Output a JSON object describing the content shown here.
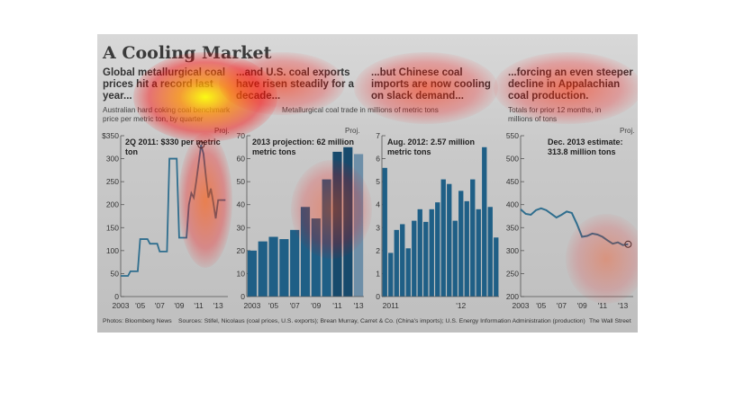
{
  "title": "A Cooling Market",
  "panels": [
    {
      "headline": "Global metallurgical coal prices hit a record last year...",
      "subtitle": "Australian hard coking coal benchmark price per metric ton, by quarter",
      "proj": "Proj.",
      "annotation": "2Q 2011: $330 per metric ton"
    },
    {
      "headline": "...and U.S. coal exports have risen steadily for a decade...",
      "subtitle": "",
      "proj": "Proj.",
      "annotation": "2013 projection: 62 million metric tons"
    },
    {
      "headline": "...but Chinese coal imports are now cooling on slack demand...",
      "subtitle": "",
      "proj": "",
      "annotation": "Aug. 2012: 2.57 million metric tons"
    },
    {
      "headline": "...forcing an even steeper decline in Appalachian coal production.",
      "subtitle": "Totals for prior 12 months, in millions of tons",
      "proj": "Proj.",
      "annotation": "Dec. 2013 estimate: 313.8 million tons"
    }
  ],
  "shared_subtitle": "Metallurgical coal trade in millions of metric tons",
  "footer": {
    "photos": "Photos: Bloomberg News",
    "sources": "Sources: Stifel, Nicolaus (coal prices, U.S. exports); Brean Murray, Carret & Co. (China's imports); U.S. Energy Information Administration (production)",
    "brand": "The Wall Street"
  },
  "colors": {
    "line": "#2f6e8e",
    "bar": "#1f5f86",
    "bar_dark": "#174a6c",
    "bar_proj": "#6e8fa8"
  },
  "chart_data": [
    {
      "type": "line",
      "ylim": [
        0,
        350
      ],
      "yticks": [
        0,
        50,
        100,
        150,
        200,
        250,
        300,
        350
      ],
      "ytick_labels": [
        "0",
        "50",
        "100",
        "150",
        "200",
        "250",
        "300",
        "$350"
      ],
      "xlim": [
        2003,
        2014
      ],
      "xtick_labels": [
        "2003",
        "'05",
        "'07",
        "'09",
        "'11",
        "'13"
      ],
      "xtick_values": [
        2003,
        2005,
        2007,
        2009,
        2011,
        2013
      ],
      "series": [
        {
          "values": [
            [
              2003,
              45
            ],
            [
              2003.75,
              45
            ],
            [
              2004,
              55
            ],
            [
              2004.75,
              55
            ],
            [
              2005,
              125
            ],
            [
              2005.75,
              125
            ],
            [
              2006,
              115
            ],
            [
              2006.75,
              115
            ],
            [
              2007,
              98
            ],
            [
              2007.75,
              98
            ],
            [
              2008,
              300
            ],
            [
              2008.75,
              300
            ],
            [
              2009,
              128
            ],
            [
              2009.75,
              128
            ],
            [
              2010,
              200
            ],
            [
              2010.25,
              225
            ],
            [
              2010.5,
              215
            ],
            [
              2010.75,
              250
            ],
            [
              2011,
              290
            ],
            [
              2011.25,
              330
            ],
            [
              2011.5,
              310
            ],
            [
              2011.75,
              260
            ],
            [
              2012,
              215
            ],
            [
              2012.25,
              235
            ],
            [
              2012.5,
              205
            ],
            [
              2012.75,
              170
            ],
            [
              2013,
              210
            ],
            [
              2013.75,
              210
            ]
          ]
        }
      ],
      "annotation_point": [
        2011.25,
        330
      ]
    },
    {
      "type": "bar",
      "ylim": [
        0,
        70
      ],
      "yticks": [
        0,
        10,
        20,
        30,
        40,
        50,
        60,
        70
      ],
      "categories": [
        "2003",
        "2004",
        "2005",
        "2006",
        "2007",
        "2008",
        "2009",
        "2010",
        "2011",
        "2012",
        "2013"
      ],
      "xtick_labels": [
        "2003",
        "'05",
        "'07",
        "'09",
        "'11",
        "'13"
      ],
      "values": [
        20,
        24,
        26,
        25,
        29,
        39,
        34,
        51,
        63,
        65,
        62
      ],
      "projected_index": 10
    },
    {
      "type": "bar",
      "ylim": [
        0,
        7
      ],
      "yticks": [
        0,
        1,
        2,
        3,
        4,
        5,
        6,
        7
      ],
      "xtick_labels": [
        "2011",
        "'12"
      ],
      "values": [
        5.6,
        1.9,
        2.9,
        3.15,
        2.1,
        3.3,
        3.8,
        3.25,
        3.8,
        4.1,
        5.1,
        4.9,
        3.3,
        4.6,
        4.15,
        5.1,
        3.8,
        6.5,
        3.9,
        2.57
      ],
      "annotation_index": 19
    },
    {
      "type": "line",
      "ylim": [
        200,
        550
      ],
      "yticks": [
        200,
        250,
        300,
        350,
        400,
        450,
        500,
        550
      ],
      "xlim": [
        2003,
        2014
      ],
      "xtick_labels": [
        "2003",
        "'05",
        "'07",
        "'09",
        "'11",
        "'13"
      ],
      "xtick_values": [
        2003,
        2005,
        2007,
        2009,
        2011,
        2013
      ],
      "series": [
        {
          "values": [
            [
              2003,
              390
            ],
            [
              2003.5,
              380
            ],
            [
              2004,
              378
            ],
            [
              2004.5,
              388
            ],
            [
              2005,
              392
            ],
            [
              2005.5,
              388
            ],
            [
              2006,
              380
            ],
            [
              2006.5,
              372
            ],
            [
              2007,
              378
            ],
            [
              2007.5,
              385
            ],
            [
              2008,
              382
            ],
            [
              2008.5,
              358
            ],
            [
              2009,
              330
            ],
            [
              2009.5,
              332
            ],
            [
              2010,
              337
            ],
            [
              2010.5,
              335
            ],
            [
              2011,
              330
            ],
            [
              2011.5,
              322
            ],
            [
              2012,
              315
            ],
            [
              2012.5,
              318
            ],
            [
              2013,
              312
            ],
            [
              2013.5,
              313.8
            ]
          ]
        }
      ],
      "annotation_point": [
        2013.5,
        313.8
      ]
    }
  ]
}
